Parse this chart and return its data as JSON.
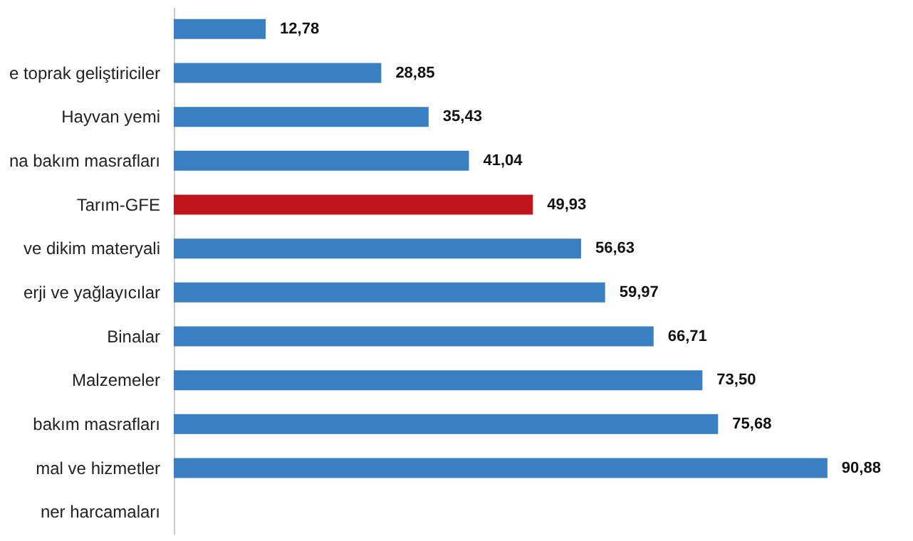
{
  "chart_data": {
    "type": "bar",
    "orientation": "horizontal",
    "categories": [
      null,
      "e toprak geliştiriciler",
      "Hayvan yemi",
      "na bakım masrafları",
      "Tarım-GFE",
      "ve dikim materyali",
      "erji  ve yağlayıcılar",
      "Binalar",
      "Malzemeler",
      "bakım masrafları",
      "mal ve hizmetler",
      "ner harcamaları"
    ],
    "values": [
      12.78,
      28.85,
      35.43,
      41.04,
      49.93,
      56.63,
      59.97,
      66.71,
      73.5,
      75.68,
      90.88,
      null
    ],
    "value_labels": [
      "12,78",
      "28,85",
      "35,43",
      "41,04",
      "49,93",
      "56,63",
      "59,97",
      "66,71",
      "73,50",
      "75,68",
      "90,88",
      null
    ],
    "colors": [
      "#3a7fc1",
      "#3a7fc1",
      "#3a7fc1",
      "#3a7fc1",
      "#c0141c",
      "#3a7fc1",
      "#3a7fc1",
      "#3a7fc1",
      "#3a7fc1",
      "#3a7fc1",
      "#3a7fc1",
      "#3a7fc1"
    ],
    "grid": false
  }
}
